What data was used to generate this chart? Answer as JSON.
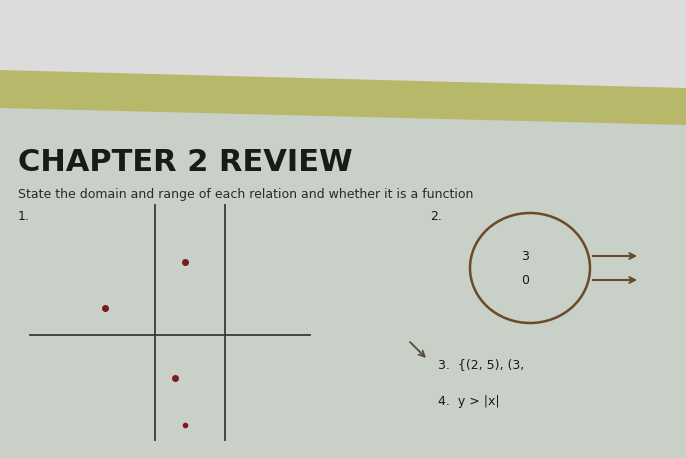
{
  "bg_top_white": "#e8e8e8",
  "bg_stripe_color": "#b8b86a",
  "bg_paper_color": "#c8d0c8",
  "title": "CHAPTER 2 REVIEW",
  "subtitle": "State the domain and range of each relation and whether it is a function",
  "title_fontsize": 22,
  "subtitle_fontsize": 9,
  "title_color": "#1a1a1a",
  "subtitle_color": "#2a2a2a",
  "problem1_label": "1.",
  "problem2_label": "2.",
  "problem3_text": "3.  {(2, 5), (3,",
  "problem4_text": "4.  y > |x|",
  "dot_color": "#7a1a1a",
  "axis_color": "#3a3a3a",
  "circle_color": "#6a4a2a",
  "arrow_label_3": "3",
  "arrow_label_0": "0"
}
